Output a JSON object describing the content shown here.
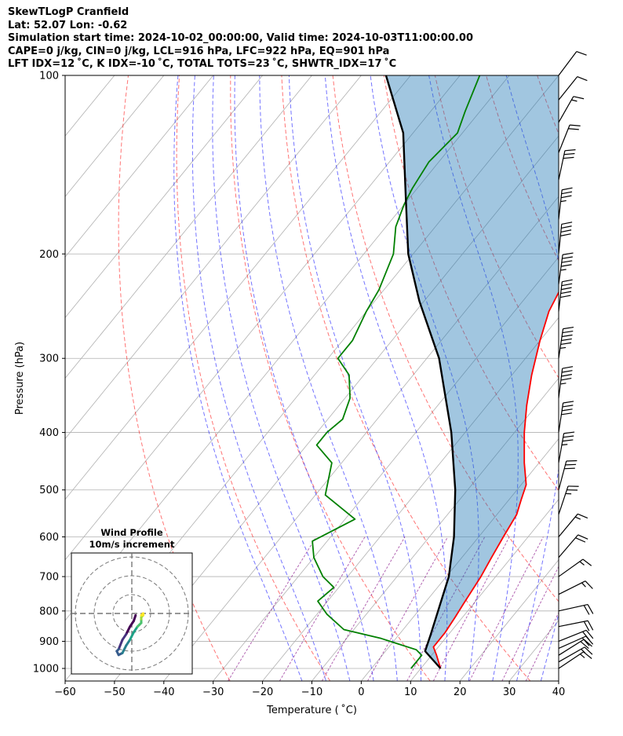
{
  "header": {
    "line1": "SkewTLogP Cranfield",
    "line2": "Lat: 52.07   Lon: -0.62",
    "line3": "Simulation start time: 2024-10-02_00:00:00, Valid time: 2024-10-03T11:00:00.00",
    "line4": "CAPE=0 j/kg, CIN=0 j/kg, LCL=916 hPa, LFC=922 hPa, EQ=901 hPa",
    "line5": "LFT IDX=12 ˚C, K IDX=-10 ˚C, TOTAL TOTS=23 ˚C, SHWTR_IDX=17 ˚C"
  },
  "chart_data": {
    "type": "line",
    "title": "SkewTLogP Cranfield",
    "xlabel": "Temperature ( ˚C)",
    "ylabel": "Pressure (hPa)",
    "xlim": [
      -60,
      40
    ],
    "ylim": [
      1050,
      100
    ],
    "yscale": "log",
    "x_ticks": [
      -60,
      -50,
      -40,
      -30,
      -20,
      -10,
      0,
      10,
      20,
      30,
      40
    ],
    "y_ticks": [
      1000,
      900,
      800,
      700,
      600,
      500,
      400,
      300,
      200,
      100
    ],
    "grid": true,
    "series": [
      {
        "name": "Temperature",
        "color": "#ff0000",
        "points": [
          [
            14,
            1000
          ],
          [
            11,
            950
          ],
          [
            9,
            920
          ],
          [
            9,
            870
          ],
          [
            8.5,
            820
          ],
          [
            8,
            780
          ],
          [
            7,
            700
          ],
          [
            6,
            650
          ],
          [
            5,
            600
          ],
          [
            4,
            550
          ],
          [
            2.5,
            520
          ],
          [
            1,
            490
          ],
          [
            -3,
            450
          ],
          [
            -8,
            400
          ],
          [
            -12,
            360
          ],
          [
            -16,
            320
          ],
          [
            -20,
            280
          ],
          [
            -23,
            250
          ],
          [
            -25,
            220
          ],
          [
            -27,
            200
          ],
          [
            -30,
            180
          ],
          [
            -35,
            160
          ],
          [
            -40,
            145
          ],
          [
            -44,
            130
          ],
          [
            -48,
            118
          ],
          [
            -52,
            100
          ]
        ]
      },
      {
        "name": "Dewpoint",
        "color": "#008000",
        "points": [
          [
            8,
            1000
          ],
          [
            8,
            950
          ],
          [
            6,
            930
          ],
          [
            -3,
            890
          ],
          [
            -12,
            860
          ],
          [
            -18,
            810
          ],
          [
            -22,
            770
          ],
          [
            -21,
            730
          ],
          [
            -25,
            700
          ],
          [
            -30,
            650
          ],
          [
            -33,
            610
          ],
          [
            -28,
            560
          ],
          [
            -38,
            510
          ],
          [
            -42,
            450
          ],
          [
            -48,
            420
          ],
          [
            -48,
            400
          ],
          [
            -47,
            380
          ],
          [
            -49,
            350
          ],
          [
            -53,
            320
          ],
          [
            -58,
            300
          ],
          [
            -58,
            280
          ],
          [
            -60,
            250
          ],
          [
            -61,
            230
          ],
          [
            -64,
            200
          ],
          [
            -68,
            180
          ],
          [
            -70,
            165
          ],
          [
            -71,
            155
          ],
          [
            -72,
            140
          ],
          [
            -71,
            125
          ],
          [
            -73,
            115
          ],
          [
            -76,
            100
          ]
        ]
      },
      {
        "name": "Parcel",
        "color": "#000000",
        "points": [
          [
            14,
            1000
          ],
          [
            8,
            935
          ],
          [
            6.5,
            880
          ],
          [
            4,
            800
          ],
          [
            0.5,
            700
          ],
          [
            -5,
            600
          ],
          [
            -12.5,
            500
          ],
          [
            -22.8,
            400
          ],
          [
            -37.5,
            300
          ],
          [
            -51,
            240
          ],
          [
            -61,
            200
          ],
          [
            -71,
            160
          ],
          [
            -82,
            125
          ],
          [
            -95,
            100
          ]
        ]
      }
    ],
    "dry_adiabat_thetas_C": [
      -30,
      -10,
      10,
      30,
      50,
      70,
      90,
      110,
      130,
      150,
      170
    ],
    "moist_adiabat_starts_C": [
      -15,
      -10,
      -5,
      0,
      5,
      10,
      15,
      20,
      25,
      30,
      35
    ],
    "mixing_ratios_gkg": [
      0.4,
      1,
      2,
      4,
      7,
      10,
      16,
      24,
      32
    ],
    "wind_barbs": [
      {
        "p": 1000,
        "u": -6,
        "v": -4
      },
      {
        "p": 975,
        "u": -7,
        "v": -4
      },
      {
        "p": 950,
        "u": -8,
        "v": -5
      },
      {
        "p": 925,
        "u": -9,
        "v": -4
      },
      {
        "p": 900,
        "u": -10,
        "v": -4
      },
      {
        "p": 850,
        "u": -10,
        "v": -2
      },
      {
        "p": 800,
        "u": -9,
        "v": -2
      },
      {
        "p": 750,
        "u": -8,
        "v": -4
      },
      {
        "p": 700,
        "u": -7,
        "v": -5
      },
      {
        "p": 650,
        "u": -6,
        "v": -7
      },
      {
        "p": 600,
        "u": -5,
        "v": -6
      },
      {
        "p": 550,
        "u": -4,
        "v": -12
      },
      {
        "p": 500,
        "u": -4,
        "v": -15
      },
      {
        "p": 450,
        "u": -3,
        "v": -17
      },
      {
        "p": 400,
        "u": -3,
        "v": -20
      },
      {
        "p": 350,
        "u": -3,
        "v": -24
      },
      {
        "p": 300,
        "u": -4,
        "v": -27
      },
      {
        "p": 250,
        "u": -3,
        "v": -26
      },
      {
        "p": 225,
        "u": -3,
        "v": -22
      },
      {
        "p": 200,
        "u": -2,
        "v": -20
      },
      {
        "p": 175,
        "u": -2,
        "v": -18
      },
      {
        "p": 150,
        "u": -3,
        "v": -14
      },
      {
        "p": 135,
        "u": -4,
        "v": -10
      },
      {
        "p": 120,
        "u": -4,
        "v": -7
      },
      {
        "p": 110,
        "u": -4,
        "v": -5
      },
      {
        "p": 100,
        "u": -3,
        "v": -4
      }
    ],
    "hodograph": {
      "title_line1": "Wind Profile",
      "title_line2": "10m/s increment",
      "rings_ms": [
        10,
        20,
        30
      ],
      "points": [
        [
          2,
          -1
        ],
        [
          1,
          -4
        ],
        [
          -1,
          -7
        ],
        [
          -3,
          -11
        ],
        [
          -5,
          -14
        ],
        [
          -7,
          -19
        ],
        [
          -8,
          -20
        ],
        [
          -7,
          -22
        ],
        [
          -5,
          -21
        ],
        [
          -3,
          -17
        ],
        [
          -1,
          -14
        ],
        [
          1,
          -10
        ],
        [
          3,
          -7
        ],
        [
          4,
          -6
        ],
        [
          5,
          -5
        ],
        [
          5,
          -3
        ],
        [
          5,
          -2
        ],
        [
          6,
          -1
        ],
        [
          6,
          0
        ],
        [
          5,
          -1
        ]
      ]
    }
  }
}
